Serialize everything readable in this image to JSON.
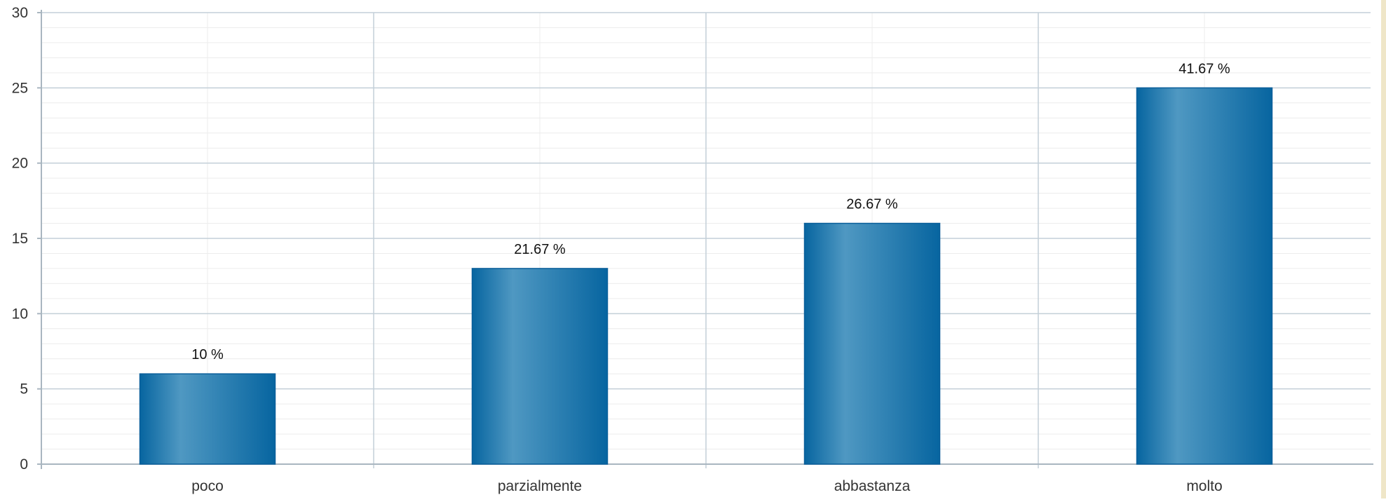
{
  "chart_data": {
    "type": "bar",
    "title": "",
    "xlabel": "",
    "ylabel": "",
    "categories": [
      "poco",
      "parzialmente",
      "abbastanza",
      "molto"
    ],
    "values": [
      6,
      13,
      16,
      25
    ],
    "data_labels": [
      "10 %",
      "21.67 %",
      "26.67 %",
      "41.67 %"
    ],
    "ylim": [
      0,
      30
    ],
    "y_ticks": [
      "0",
      "5",
      "10",
      "15",
      "20",
      "25",
      "30"
    ],
    "grid": true,
    "legend": "none",
    "colors": {
      "bar_edge": "#0a5f9a",
      "bar_light": "#4f98c2",
      "bar_dark": "#0765a0",
      "grid_major": "#c3cfd8",
      "grid_minor": "#ececec",
      "axis": "#a9b6c0",
      "tick_text": "#333333",
      "label_text": "#111111",
      "side_strip": "#efe6c8"
    }
  }
}
